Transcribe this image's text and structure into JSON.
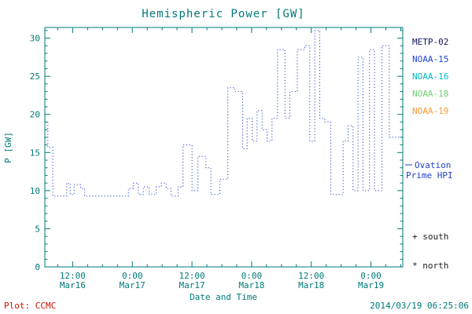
{
  "title": "Hemispheric Power [GW]",
  "ylabel": "P [GW]",
  "xlabel": "Date and Time",
  "footer": {
    "plot_credit": "Plot: CCMC",
    "timestamp": "2014/03/19 06:25:06"
  },
  "legend": {
    "satellites": [
      {
        "label": "METP-02",
        "color": "#14145a"
      },
      {
        "label": "NOAA-15",
        "color": "#2244cc"
      },
      {
        "label": "NOAA-16",
        "color": "#00b8c8"
      },
      {
        "label": "NOAA-18",
        "color": "#6fce6f"
      },
      {
        "label": "NOAA-19",
        "color": "#ff9933"
      }
    ],
    "series_label_line1": "Ovation",
    "series_label_line2": "Prime HPI",
    "south_marker": "+ south",
    "north_marker": "* north"
  },
  "colors": {
    "axis": "#007a7a",
    "title": "#007a7a",
    "tick_text": "#007a7a",
    "credit_red": "#cc1100",
    "marker_black": "#1a1a1a",
    "hpi_blue": "#2244cc",
    "background": "#ffffff"
  },
  "chart_data": {
    "type": "line",
    "style": "dotted-step",
    "title": "Hemispheric Power [GW]",
    "xlabel": "Date and Time",
    "ylabel": "P [GW]",
    "legend_position": "right",
    "grid": false,
    "ylim": [
      0,
      31.4
    ],
    "xlim_hours_from_mar16_0000": [
      6.4,
      78.4
    ],
    "y_major_ticks": [
      0,
      5,
      10,
      15,
      20,
      25,
      30
    ],
    "y_minor_step": 1,
    "x_minor_step_hours": 3,
    "x_major_ticks": [
      {
        "t": 12,
        "time": "12:00",
        "date": "Mar16"
      },
      {
        "t": 24,
        "time": "0:00",
        "date": "Mar17"
      },
      {
        "t": 36,
        "time": "12:00",
        "date": "Mar17"
      },
      {
        "t": 48,
        "time": "0:00",
        "date": "Mar18"
      },
      {
        "t": 60,
        "time": "12:00",
        "date": "Mar18"
      },
      {
        "t": 72,
        "time": "0:00",
        "date": "Mar19"
      }
    ],
    "series": [
      {
        "name": "Ovation Prime HPI",
        "color": "#2244cc",
        "units": "GW",
        "points_t_hours_value_gw": [
          [
            6.4,
            19.0
          ],
          [
            7.0,
            15.7
          ],
          [
            8.0,
            9.3
          ],
          [
            10.8,
            11.0
          ],
          [
            11.5,
            9.5
          ],
          [
            12.3,
            10.8
          ],
          [
            13.6,
            10.3
          ],
          [
            14.4,
            9.3
          ],
          [
            23.2,
            10.3
          ],
          [
            24.2,
            11.0
          ],
          [
            25.2,
            9.5
          ],
          [
            26.2,
            10.5
          ],
          [
            27.4,
            9.5
          ],
          [
            28.8,
            10.5
          ],
          [
            29.8,
            11.0
          ],
          [
            30.8,
            10.3
          ],
          [
            31.8,
            9.3
          ],
          [
            33.2,
            10.5
          ],
          [
            34.2,
            16.0
          ],
          [
            36.0,
            10.0
          ],
          [
            37.2,
            14.5
          ],
          [
            38.8,
            13.0
          ],
          [
            39.8,
            9.5
          ],
          [
            41.6,
            11.5
          ],
          [
            43.2,
            23.5
          ],
          [
            44.6,
            23.0
          ],
          [
            46.2,
            15.5
          ],
          [
            47.1,
            19.5
          ],
          [
            48.1,
            16.5
          ],
          [
            49.1,
            20.5
          ],
          [
            50.1,
            18.0
          ],
          [
            51.1,
            16.5
          ],
          [
            52.1,
            19.5
          ],
          [
            53.2,
            28.5
          ],
          [
            54.7,
            19.5
          ],
          [
            55.7,
            23.0
          ],
          [
            57.2,
            28.5
          ],
          [
            58.7,
            29.0
          ],
          [
            59.7,
            16.5
          ],
          [
            60.7,
            31.0
          ],
          [
            61.7,
            19.5
          ],
          [
            62.7,
            19.0
          ],
          [
            63.9,
            9.5
          ],
          [
            66.4,
            16.5
          ],
          [
            67.4,
            18.5
          ],
          [
            68.4,
            10.0
          ],
          [
            69.4,
            27.5
          ],
          [
            70.4,
            10.0
          ],
          [
            71.7,
            28.5
          ],
          [
            72.7,
            10.0
          ],
          [
            74.2,
            29.0
          ],
          [
            75.7,
            17.0
          ],
          [
            78.4,
            17.0
          ]
        ]
      }
    ]
  }
}
